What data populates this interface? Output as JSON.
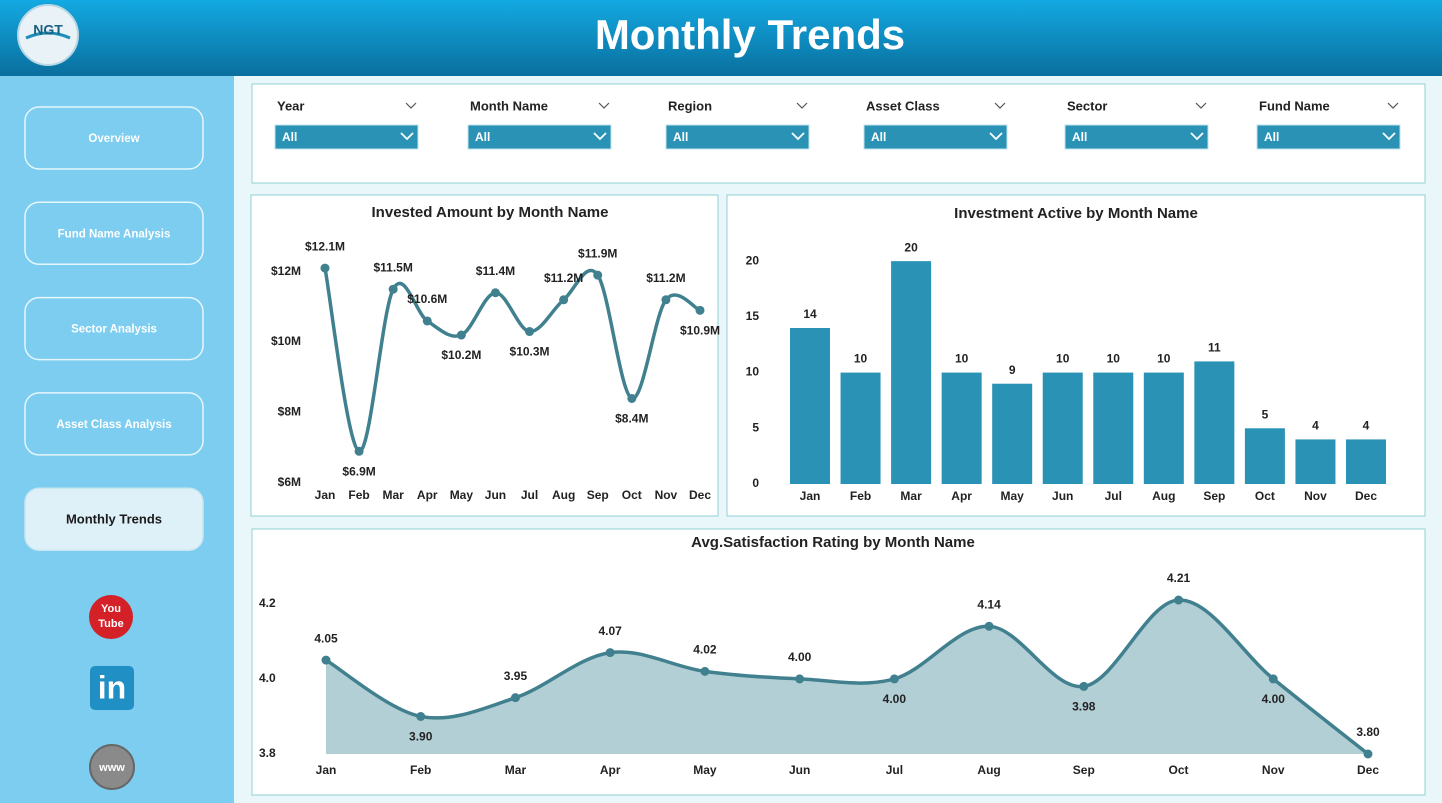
{
  "header": {
    "logo": "NGT",
    "title": "Monthly Trends"
  },
  "nav": [
    "Overview",
    "Fund Name Analysis",
    "Sector Analysis",
    "Asset Class Analysis",
    "Monthly Trends"
  ],
  "social": {
    "youtube": [
      "You",
      "Tube"
    ],
    "linkedin": "in",
    "web": "www"
  },
  "filters": [
    {
      "label": "Year",
      "value": "All"
    },
    {
      "label": "Month Name",
      "value": "All"
    },
    {
      "label": "Region",
      "value": "All"
    },
    {
      "label": "Asset Class",
      "value": "All"
    },
    {
      "label": "Sector",
      "value": "All"
    },
    {
      "label": "Fund Name",
      "value": "All"
    }
  ],
  "chart_data": [
    {
      "type": "line",
      "title": "Invested Amount by Month Name",
      "categories": [
        "Jan",
        "Feb",
        "Mar",
        "Apr",
        "May",
        "Jun",
        "Jul",
        "Aug",
        "Sep",
        "Oct",
        "Nov",
        "Dec"
      ],
      "values": [
        12100000,
        6900000,
        11500000,
        10600000,
        10200000,
        11400000,
        10300000,
        11200000,
        11900000,
        8400000,
        11200000,
        10900000
      ],
      "value_labels": [
        "$12.1M",
        "$6.9M",
        "$11.5M",
        "$10.6M",
        "$10.2M",
        "$11.4M",
        "$10.3M",
        "$11.2M",
        "$11.9M",
        "$8.4M",
        "$11.2M",
        "$10.9M"
      ],
      "color": "#41808f",
      "ylim": [
        6000000,
        12500000
      ],
      "yticks": [
        {
          "value": 6000000,
          "label": "$6M"
        },
        {
          "value": 8000000,
          "label": "$8M"
        },
        {
          "value": 10000000,
          "label": "$10M"
        },
        {
          "value": 12000000,
          "label": "$12M"
        }
      ]
    },
    {
      "type": "bar",
      "title": "Investment Active by Month Name",
      "categories": [
        "Jan",
        "Feb",
        "Mar",
        "Apr",
        "May",
        "Jun",
        "Jul",
        "Aug",
        "Sep",
        "Oct",
        "Nov",
        "Dec"
      ],
      "values": [
        14,
        10,
        20,
        10,
        9,
        10,
        10,
        10,
        11,
        5,
        4,
        4
      ],
      "color": "#2a93b5",
      "ylim": [
        0,
        21
      ],
      "yticks": [
        0,
        5,
        10,
        15,
        20
      ]
    },
    {
      "type": "area",
      "title": "Avg.Satisfaction Rating by Month Name",
      "categories": [
        "Jan",
        "Feb",
        "Mar",
        "Apr",
        "May",
        "Jun",
        "Jul",
        "Aug",
        "Sep",
        "Oct",
        "Nov",
        "Dec"
      ],
      "values": [
        4.05,
        3.9,
        3.95,
        4.07,
        4.02,
        4.0,
        4.0,
        4.14,
        3.98,
        4.21,
        4.0,
        3.8
      ],
      "value_labels": [
        "4.05",
        "3.90",
        "3.95",
        "4.07",
        "4.02",
        "4.00",
        "4.00",
        "4.14",
        "3.98",
        "4.21",
        "4.00",
        "3.80"
      ],
      "color": "#41808f",
      "fill": "#b3cfd6",
      "ylim": [
        3.8,
        4.25
      ],
      "yticks": [
        3.8,
        {
          "value": 4,
          "label": "4.0"
        },
        4.2
      ]
    }
  ]
}
